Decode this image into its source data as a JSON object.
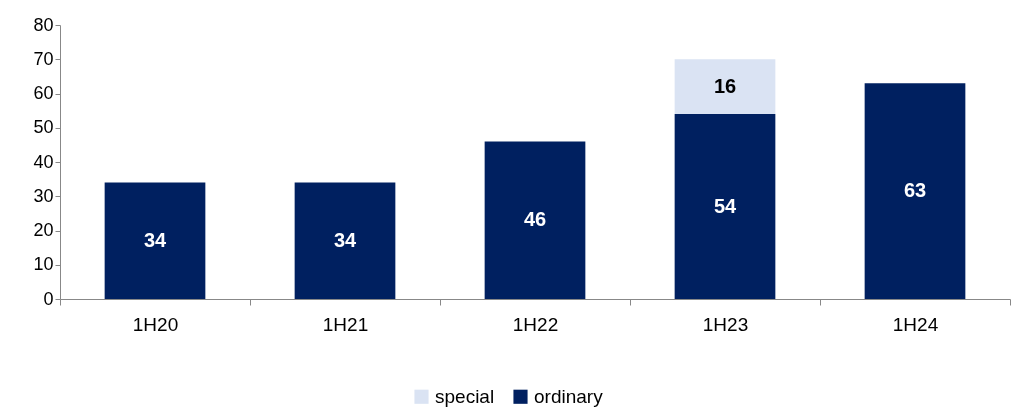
{
  "chart_data": {
    "type": "bar",
    "stacked": true,
    "categories": [
      "1H20",
      "1H21",
      "1H22",
      "1H23",
      "1H24"
    ],
    "series": [
      {
        "name": "ordinary",
        "color": "#002060",
        "values": [
          34,
          34,
          46,
          54,
          63
        ]
      },
      {
        "name": "special",
        "color": "#dae3f3",
        "values": [
          null,
          null,
          null,
          16,
          null
        ]
      }
    ],
    "ylim": [
      0,
      80
    ],
    "yticks": [
      0,
      10,
      20,
      30,
      40,
      50,
      60,
      70,
      80
    ],
    "grid": false,
    "legend": "bottom",
    "data_labels": true
  }
}
